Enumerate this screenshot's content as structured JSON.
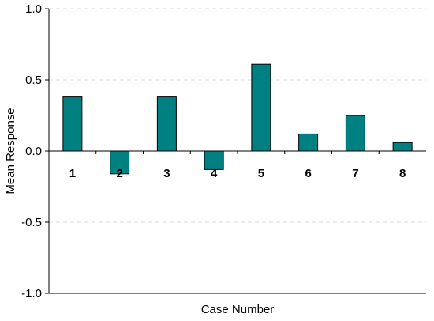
{
  "chart_data": {
    "type": "bar",
    "categories": [
      "1",
      "2",
      "3",
      "4",
      "5",
      "6",
      "7",
      "8"
    ],
    "values": [
      0.38,
      -0.16,
      0.38,
      -0.13,
      0.61,
      0.12,
      0.25,
      0.06
    ],
    "title": "",
    "xlabel": "Case Number",
    "ylabel": "Mean Response",
    "ylim": [
      -1.0,
      1.0
    ],
    "yticks": [
      1.0,
      0.5,
      0.0,
      -0.5,
      -1.0
    ],
    "ytick_labels": [
      "1.0",
      "0.5",
      "0.0",
      "-0.5",
      "-1.0"
    ],
    "grid": "horizontal dashed",
    "bar_color": "#008080"
  }
}
